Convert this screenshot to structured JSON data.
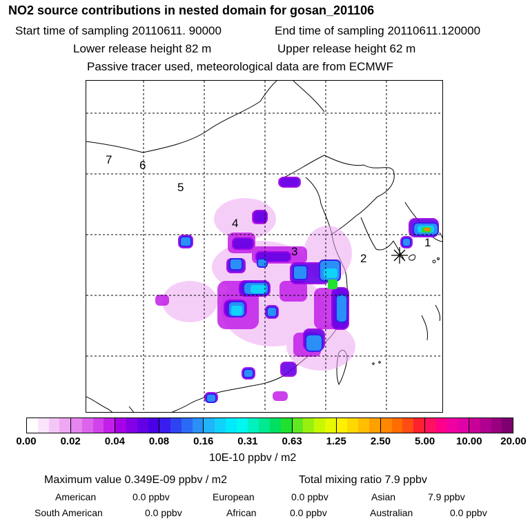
{
  "header": {
    "title": "NO2 source contributions in nested domain for gosan_201106",
    "start_time": "Start time of sampling 20110611. 90000",
    "end_time": "End time of sampling 20110611.120000",
    "lower_release": "Lower release height   82 m",
    "upper_release": "Upper release height   62 m",
    "tracer_note": "Passive tracer used, meteorological data are from ECMWF"
  },
  "map": {
    "region_labels": [
      "1",
      "2",
      "3",
      "4",
      "5",
      "6",
      "7"
    ]
  },
  "colorbar": {
    "tick_labels": [
      "0.00",
      "0.02",
      "0.04",
      "0.08",
      "0.16",
      "0.31",
      "0.63",
      "1.25",
      "2.50",
      "5.00",
      "10.00",
      "20.00"
    ],
    "segments": [
      [
        "#ffffff",
        "#fae3fb",
        "#f4c6f7",
        "#eea7f3"
      ],
      [
        "#e585ef",
        "#dc64ec",
        "#d143ea",
        "#c21fe8"
      ],
      [
        "#a500e6",
        "#8400e6",
        "#6400e6",
        "#4a00e6"
      ],
      [
        "#3a1cf0",
        "#2e44f2",
        "#2a6af4",
        "#2a90f7"
      ],
      [
        "#20b4fa",
        "#10d2fb",
        "#00eafc",
        "#00f8f0"
      ],
      [
        "#00f0c0",
        "#00e890",
        "#00e060",
        "#20e030"
      ],
      [
        "#60e820",
        "#98f010",
        "#c8f800",
        "#e8f800"
      ],
      [
        "#fff000",
        "#ffd800",
        "#ffbe00",
        "#ffa000"
      ],
      [
        "#ff8800",
        "#ff6c00",
        "#ff4c10",
        "#ff2030"
      ],
      [
        "#ff1060",
        "#ff0088",
        "#f000a0",
        "#e000a8"
      ],
      [
        "#c80098",
        "#b00090",
        "#980080",
        "#7c0070"
      ]
    ],
    "units": "10E-10 ppbv / m2"
  },
  "footer": {
    "max_value": "Maximum value  0.349E-09 ppbv / m2",
    "total_mixing": "Total mixing ratio       7.9 ppbv",
    "sources": [
      {
        "name": "American",
        "value": "0.0 ppbv"
      },
      {
        "name": "European",
        "value": "0.0 ppbv"
      },
      {
        "name": "Asian",
        "value": "7.9 ppbv"
      },
      {
        "name": "South American",
        "value": "0.0 ppbv"
      },
      {
        "name": "African",
        "value": "0.0 ppbv"
      },
      {
        "name": "Australian",
        "value": "0.0 ppbv"
      }
    ]
  }
}
